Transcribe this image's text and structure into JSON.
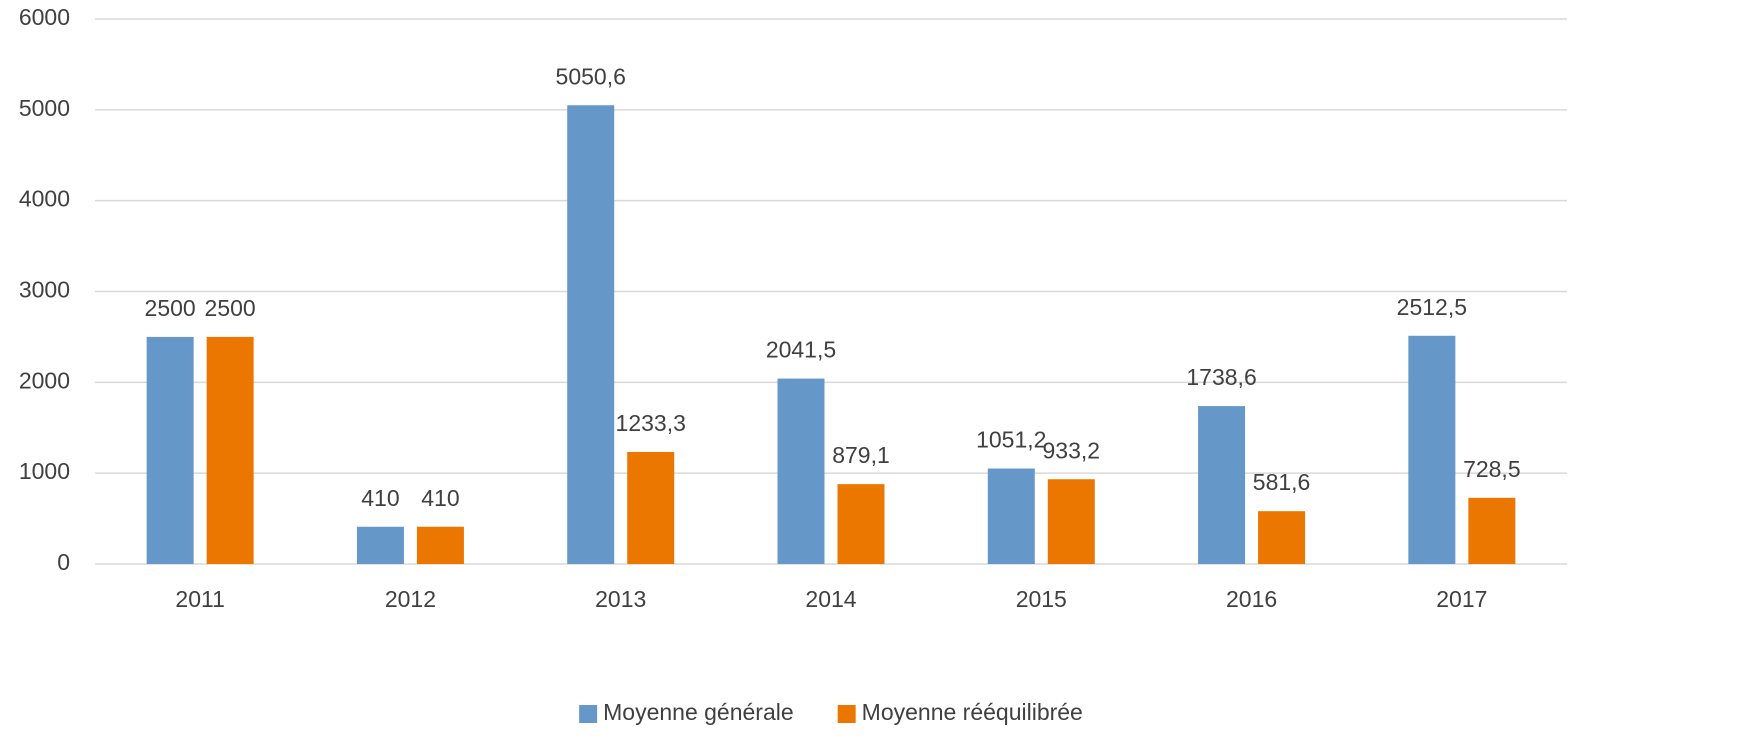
{
  "chart_data": {
    "type": "bar",
    "categories": [
      "2011",
      "2012",
      "2013",
      "2014",
      "2015",
      "2016",
      "2017"
    ],
    "series": [
      {
        "name": "Moyenne générale",
        "color": "#6598c9",
        "values": [
          2500,
          410,
          5050.6,
          2041.5,
          1051.2,
          1738.6,
          2512.5
        ],
        "value_labels": [
          "2500",
          "410",
          "5050,6",
          "2041,5",
          "1051,2",
          "1738,6",
          "2512,5"
        ]
      },
      {
        "name": "Moyenne rééquilibrée",
        "color": "#ec7700",
        "values": [
          2500,
          410,
          1233.3,
          879.1,
          933.2,
          581.6,
          728.5
        ],
        "value_labels": [
          "2500",
          "410",
          "1233,3",
          "879,1",
          "933,2",
          "581,6",
          "728,5"
        ]
      }
    ],
    "ylim": [
      0,
      6000
    ],
    "yticks": [
      0,
      1000,
      2000,
      3000,
      4000,
      5000,
      6000
    ],
    "grid": true,
    "legend": "bottom"
  }
}
